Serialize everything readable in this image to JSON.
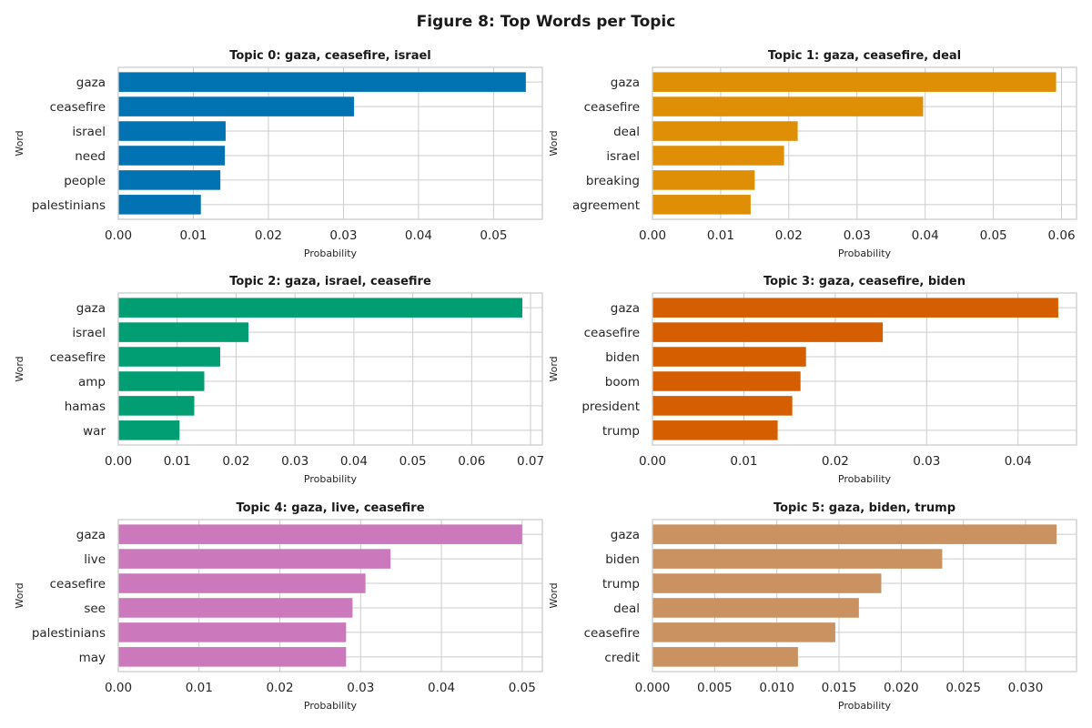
{
  "figure_title": "Figure 8: Top Words per Topic",
  "chart_data": [
    {
      "type": "bar",
      "orientation": "horizontal",
      "title": "Topic 0: gaza, ceasefire, israel",
      "xlabel": "Probability",
      "ylabel": "Word",
      "color": "#0173b2",
      "xlim": [
        0,
        0.0565
      ],
      "xticks": [
        "0.00",
        "0.01",
        "0.02",
        "0.03",
        "0.04",
        "0.05"
      ],
      "categories": [
        "gaza",
        "ceasefire",
        "israel",
        "need",
        "people",
        "palestinians"
      ],
      "values": [
        0.0543,
        0.0314,
        0.0143,
        0.0142,
        0.0136,
        0.011
      ]
    },
    {
      "type": "bar",
      "orientation": "horizontal",
      "title": "Topic 1: gaza, ceasefire, deal",
      "xlabel": "Probability",
      "ylabel": "Word",
      "color": "#de8f05",
      "xlim": [
        0,
        0.0622
      ],
      "xticks": [
        "0.00",
        "0.01",
        "0.02",
        "0.03",
        "0.04",
        "0.05",
        "0.06"
      ],
      "categories": [
        "gaza",
        "ceasefire",
        "deal",
        "israel",
        "breaking",
        "agreement"
      ],
      "values": [
        0.0592,
        0.0397,
        0.0213,
        0.0193,
        0.015,
        0.0144
      ]
    },
    {
      "type": "bar",
      "orientation": "horizontal",
      "title": "Topic 2: gaza, israel, ceasefire",
      "xlabel": "Probability",
      "ylabel": "Word",
      "color": "#029e73",
      "xlim": [
        0,
        0.072
      ],
      "xticks": [
        "0.00",
        "0.01",
        "0.02",
        "0.03",
        "0.04",
        "0.05",
        "0.06",
        "0.07"
      ],
      "categories": [
        "gaza",
        "israel",
        "ceasefire",
        "amp",
        "hamas",
        "war"
      ],
      "values": [
        0.0686,
        0.0221,
        0.0173,
        0.0146,
        0.0129,
        0.0104
      ]
    },
    {
      "type": "bar",
      "orientation": "horizontal",
      "title": "Topic 3: gaza, ceasefire, biden",
      "xlabel": "Probability",
      "ylabel": "Word",
      "color": "#d55e00",
      "xlim": [
        0,
        0.0464
      ],
      "xticks": [
        "0.00",
        "0.01",
        "0.02",
        "0.03",
        "0.04"
      ],
      "categories": [
        "gaza",
        "ceasefire",
        "biden",
        "boom",
        "president",
        "trump"
      ],
      "values": [
        0.0444,
        0.0252,
        0.0168,
        0.0162,
        0.0153,
        0.0137
      ]
    },
    {
      "type": "bar",
      "orientation": "horizontal",
      "title": "Topic 4: gaza, live, ceasefire",
      "xlabel": "Probability",
      "ylabel": "Word",
      "color": "#cc78bc",
      "xlim": [
        0,
        0.0525
      ],
      "xticks": [
        "0.00",
        "0.01",
        "0.02",
        "0.03",
        "0.04",
        "0.05"
      ],
      "categories": [
        "gaza",
        "live",
        "ceasefire",
        "see",
        "palestinians",
        "may"
      ],
      "values": [
        0.05,
        0.0337,
        0.0306,
        0.029,
        0.0282,
        0.0282
      ]
    },
    {
      "type": "bar",
      "orientation": "horizontal",
      "title": "Topic 5: gaza, biden, trump",
      "xlabel": "Probability",
      "ylabel": "Word",
      "color": "#ca9161",
      "xlim": [
        0,
        0.0341
      ],
      "xticks": [
        "0.000",
        "0.005",
        "0.010",
        "0.015",
        "0.020",
        "0.025",
        "0.030"
      ],
      "categories": [
        "gaza",
        "biden",
        "trump",
        "deal",
        "ceasefire",
        "credit"
      ],
      "values": [
        0.0325,
        0.0233,
        0.0184,
        0.0166,
        0.0147,
        0.0117
      ]
    }
  ]
}
